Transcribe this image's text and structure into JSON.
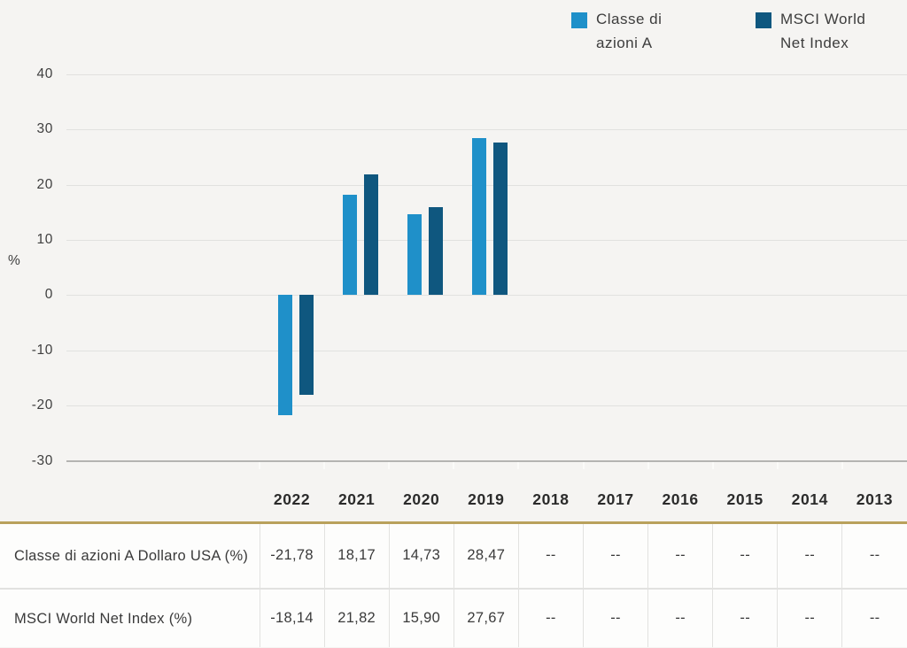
{
  "page": {
    "background": "#f5f4f2"
  },
  "legend": {
    "items": [
      {
        "name": "classe-di-azioni-a",
        "label": "Classe di azioni A",
        "label_lines": [
          "Classe di",
          "azioni A"
        ],
        "color": "#1f90c9"
      },
      {
        "name": "msci-world-net-index",
        "label": "MSCI World Net Index",
        "label_lines": [
          "MSCI World",
          "Net Index"
        ],
        "color": "#0f577f"
      }
    ]
  },
  "chart_data": {
    "type": "bar",
    "title": "",
    "xlabel": "",
    "ylabel": "%",
    "ylim": [
      -30,
      40
    ],
    "yticks": [
      40,
      30,
      20,
      10,
      0,
      -10,
      -20,
      -30
    ],
    "grid": true,
    "legend_position": "top-right",
    "categories": [
      "2022",
      "2021",
      "2020",
      "2019",
      "2018",
      "2017",
      "2016",
      "2015",
      "2014",
      "2013"
    ],
    "series": [
      {
        "name": "Classe di azioni A",
        "color": "#1f90c9",
        "values": [
          -21.78,
          18.17,
          14.73,
          28.47,
          null,
          null,
          null,
          null,
          null,
          null
        ]
      },
      {
        "name": "MSCI World Net Index",
        "color": "#0f577f",
        "values": [
          -18.14,
          21.82,
          15.9,
          27.67,
          null,
          null,
          null,
          null,
          null,
          null
        ]
      }
    ]
  },
  "table": {
    "rows": [
      {
        "label": "Classe di azioni A Dollaro USA (%)",
        "values": [
          "-21,78",
          "18,17",
          "14,73",
          "28,47",
          "--",
          "--",
          "--",
          "--",
          "--",
          "--"
        ]
      },
      {
        "label": "MSCI World Net Index (%)",
        "values": [
          "-18,14",
          "21,82",
          "15,90",
          "27,67",
          "--",
          "--",
          "--",
          "--",
          "--",
          "--"
        ]
      }
    ]
  },
  "colors": {
    "series_light": "#1f90c9",
    "series_dark": "#0f577f",
    "divider_gold": "#b9a15c",
    "grid": "#e1e1df",
    "axis": "#b4b4b2",
    "text": "#3a3a3a",
    "cell_background": "#fdfdfc"
  }
}
